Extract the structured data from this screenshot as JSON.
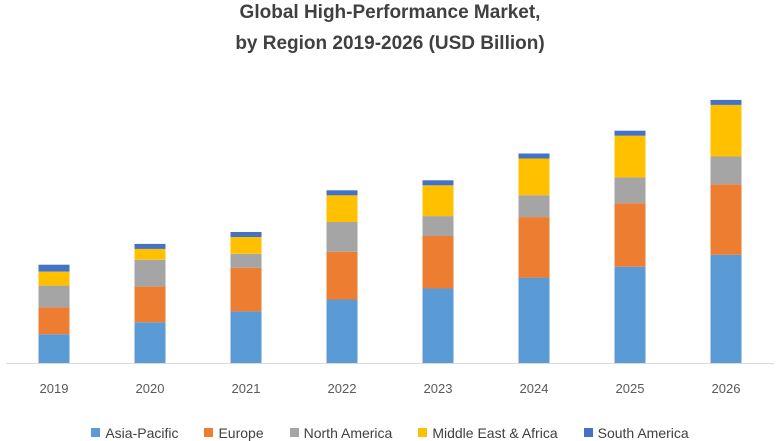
{
  "chart_data": {
    "type": "bar",
    "stacked": true,
    "title": "Global High-Performance Market,",
    "subtitle": "by Region 2019-2026 (USD Billion)",
    "categories": [
      "2019",
      "2020",
      "2021",
      "2022",
      "2023",
      "2024",
      "2025",
      "2026"
    ],
    "series": [
      {
        "name": "Asia-Pacific",
        "color": "#5B9BD5",
        "values": [
          29,
          41,
          52,
          64,
          75,
          86,
          97,
          109
        ]
      },
      {
        "name": "Europe",
        "color": "#ED7D31",
        "values": [
          27,
          36,
          44,
          48,
          53,
          61,
          64,
          71
        ]
      },
      {
        "name": "North America",
        "color": "#A5A5A5",
        "values": [
          22,
          27,
          14,
          30,
          20,
          22,
          26,
          28
        ]
      },
      {
        "name": "Middle East & Africa",
        "color": "#FFC000",
        "values": [
          14,
          11,
          17,
          27,
          31,
          37,
          42,
          52
        ]
      },
      {
        "name": "South America",
        "color": "#4472C4",
        "values": [
          7,
          5,
          5,
          5,
          5,
          5,
          5,
          5
        ]
      }
    ],
    "ylim": [
      0,
      275
    ],
    "xlabel": "",
    "ylabel": "",
    "grid": false,
    "legend_position": "bottom"
  }
}
